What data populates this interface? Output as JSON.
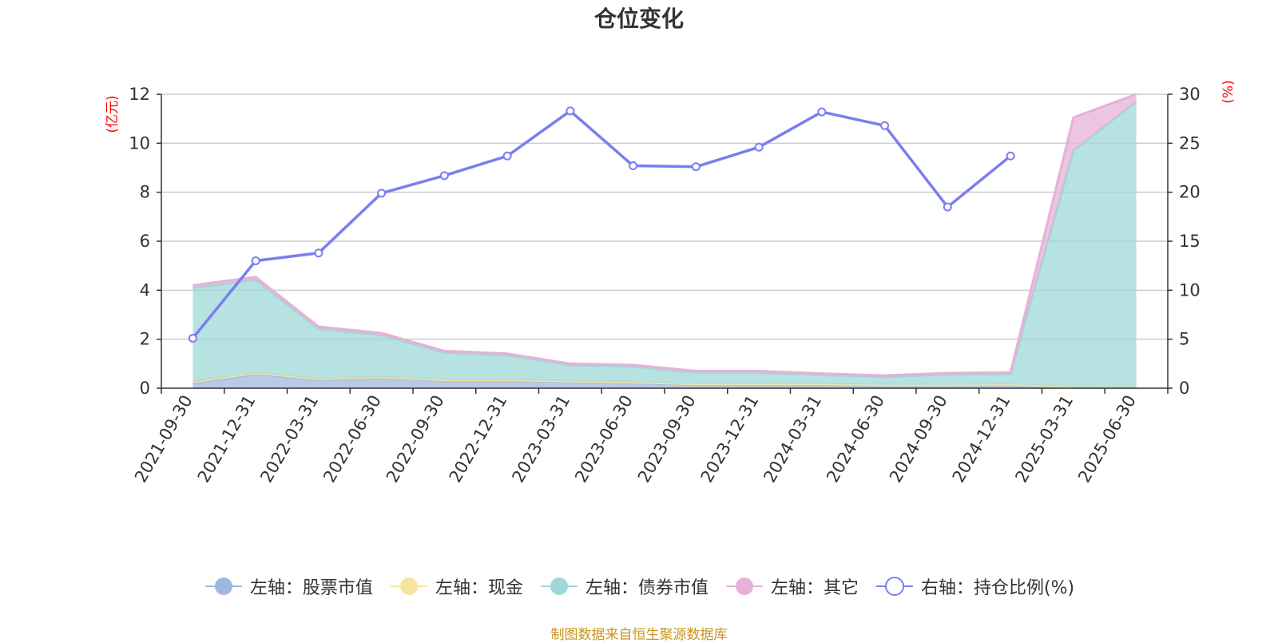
{
  "chart_data": {
    "type": "area",
    "title": "仓位变化",
    "categories": [
      "2021-09-30",
      "2021-12-31",
      "2022-03-31",
      "2022-06-30",
      "2022-09-30",
      "2022-12-31",
      "2023-03-31",
      "2023-06-30",
      "2023-09-30",
      "2023-12-31",
      "2024-03-31",
      "2024-06-30",
      "2024-09-30",
      "2024-12-31",
      "2025-03-31",
      "2025-06-30"
    ],
    "left_axis": {
      "unit": "(亿元)",
      "ylim": [
        0,
        12
      ],
      "ticks": [
        "0",
        "2",
        "4",
        "6",
        "8",
        "10",
        "12"
      ]
    },
    "right_axis": {
      "unit": "(%)",
      "ylim": [
        0,
        30
      ],
      "ticks": [
        "0",
        "5",
        "10",
        "15",
        "20",
        "25",
        "30"
      ]
    },
    "stacked": true,
    "series": [
      {
        "name": "左轴：股票市值",
        "axis": "left",
        "color": "#a0b8e0",
        "values": [
          0.22,
          0.58,
          0.35,
          0.42,
          0.32,
          0.32,
          0.27,
          0.22,
          0.15,
          0.15,
          0.15,
          0.12,
          0.12,
          0.14,
          0.03,
          0.03
        ]
      },
      {
        "name": "左轴：现金",
        "axis": "left",
        "color": "#f5e4a0",
        "values": [
          0.03,
          0.04,
          0.03,
          0.03,
          0.02,
          0.02,
          0.02,
          0.02,
          0.02,
          0.02,
          0.02,
          0.02,
          0.02,
          0.02,
          0.02,
          0.02
        ]
      },
      {
        "name": "左轴：债券市值",
        "axis": "left",
        "color": "#9fd8d8",
        "values": [
          3.85,
          3.8,
          2.05,
          1.72,
          1.12,
          1.01,
          0.65,
          0.65,
          0.47,
          0.47,
          0.37,
          0.32,
          0.42,
          0.42,
          9.65,
          11.65
        ]
      },
      {
        "name": "左轴：其它",
        "axis": "left",
        "color": "#e6b1d8",
        "values": [
          0.1,
          0.12,
          0.08,
          0.08,
          0.06,
          0.06,
          0.06,
          0.06,
          0.06,
          0.06,
          0.06,
          0.06,
          0.06,
          0.06,
          1.35,
          0.3
        ]
      },
      {
        "name": "右轴：持仓比例(%)",
        "axis": "right",
        "color": "#7b7ef0",
        "type": "line",
        "values": [
          5.1,
          13.0,
          13.8,
          19.9,
          21.7,
          23.7,
          28.3,
          22.7,
          22.6,
          24.6,
          28.2,
          26.8,
          18.5,
          23.7,
          null,
          null
        ]
      }
    ],
    "grid": true,
    "legend_position": "bottom"
  },
  "footer": {
    "source": "制图数据来自恒生聚源数据库"
  }
}
